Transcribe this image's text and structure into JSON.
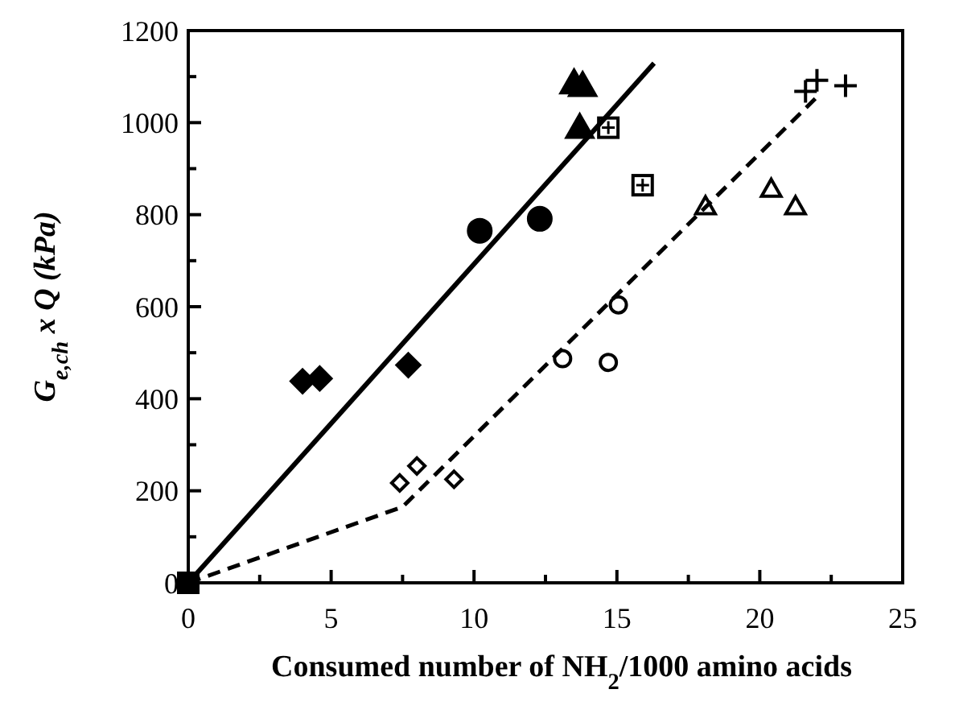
{
  "chart_data": {
    "type": "scatter",
    "xlabel": "Consumed number of NH$_{2}$/1000 amino acids",
    "ylabel": "G$_{e,ch}$ x Q (kPa)",
    "xlim": [
      0,
      25
    ],
    "ylim": [
      0,
      1200
    ],
    "xticks": [
      0,
      {
        "value": 2.5,
        "label": null
      },
      5,
      {
        "value": 7.5,
        "label": null
      },
      10,
      {
        "value": 12.5,
        "label": null
      },
      15,
      {
        "value": 17.5,
        "label": null
      },
      20,
      {
        "value": 22.5,
        "label": null
      },
      25
    ],
    "yticks": [
      0,
      {
        "value": 100,
        "label": null
      },
      200,
      {
        "value": 300,
        "label": null
      },
      400,
      {
        "value": 500,
        "label": null
      },
      600,
      {
        "value": 700,
        "label": null
      },
      800,
      {
        "value": 900,
        "label": null
      },
      1000,
      {
        "value": 1100,
        "label": null
      },
      1200
    ],
    "grid": false,
    "series": [
      {
        "marker": "square",
        "color": "#000000",
        "x": [
          0
        ],
        "values": [
          0
        ]
      },
      {
        "marker": "diamond",
        "color": "#000000",
        "x": [
          4.0,
          4.6,
          7.7
        ],
        "values": [
          438,
          444,
          473
        ]
      },
      {
        "marker": "circle",
        "color": "#000000",
        "x": [
          10.2,
          12.3
        ],
        "values": [
          765,
          791
        ]
      },
      {
        "marker": "triangle",
        "color": "#000000",
        "x": [
          13.5,
          13.8,
          13.7
        ],
        "values": [
          1086,
          1080,
          989
        ]
      },
      {
        "marker": "square",
        "color": "#ffffff",
        "x": [
          14.7,
          15.9
        ],
        "values": [
          989,
          864
        ]
      },
      {
        "marker": "diamond",
        "color": "#ffffff",
        "x": [
          7.4,
          8.0,
          9.3
        ],
        "values": [
          217,
          254,
          225
        ]
      },
      {
        "marker": "circle",
        "color": "#ffffff",
        "x": [
          13.1,
          14.7,
          15.05
        ],
        "values": [
          487,
          479,
          604
        ]
      },
      {
        "marker": "triangle",
        "color": "#ffffff",
        "x": [
          18.1,
          20.4,
          21.25
        ],
        "values": [
          818,
          856,
          818
        ]
      },
      {
        "marker": "cross",
        "color": "#000000",
        "x": [
          21.6,
          22.0,
          23.0
        ],
        "values": [
          1068,
          1092,
          1080
        ]
      },
      {
        "type": "line",
        "line_style": "solid",
        "color": "#000000",
        "x": [
          0,
          16.3
        ],
        "values": [
          0,
          1129
        ]
      },
      {
        "type": "line",
        "line_style": "dashed",
        "color": "#000000",
        "x": [
          0,
          7.5,
          22.1
        ],
        "values": [
          0,
          165,
          1062
        ]
      }
    ]
  }
}
